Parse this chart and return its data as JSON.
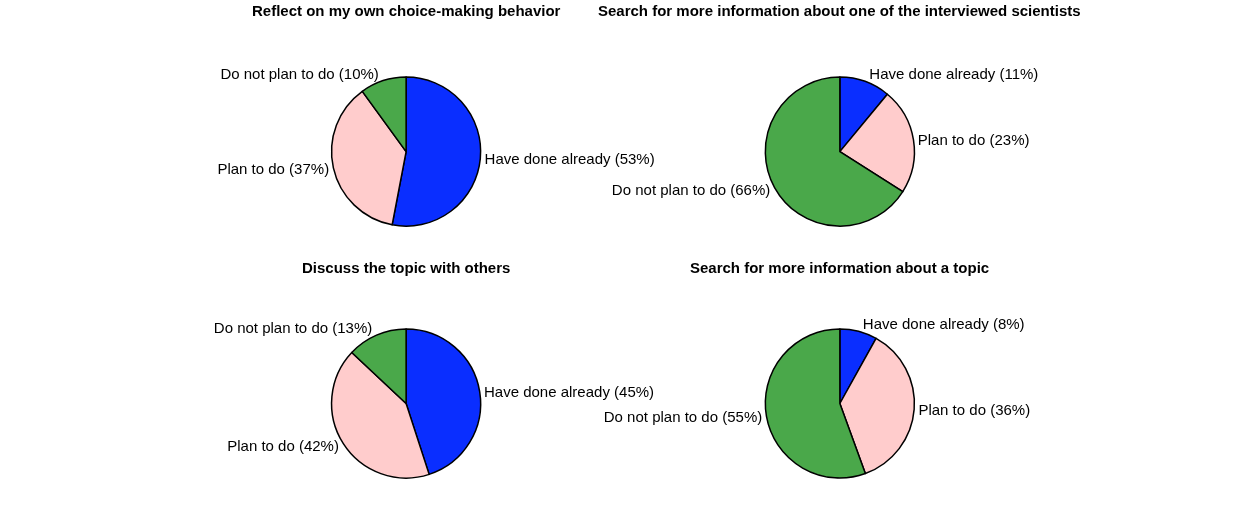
{
  "chart_data": [
    {
      "type": "pie",
      "title": "Reflect on my own choice-making behavior",
      "categories": [
        "Have done already (53%)",
        "Plan to do (37%)",
        "Do not plan to do (10%)"
      ],
      "values": [
        53,
        37,
        10
      ],
      "colors": [
        "#0a2eff",
        "#ffcccc",
        "#4aa84a"
      ],
      "legend": false
    },
    {
      "type": "pie",
      "title": "Search for more information about one of the interviewed scientists",
      "categories": [
        "Have done already (11%)",
        "Plan to do (23%)",
        "Do not plan to do (66%)"
      ],
      "values": [
        11,
        23,
        66
      ],
      "colors": [
        "#0a2eff",
        "#ffcccc",
        "#4aa84a"
      ],
      "legend": false
    },
    {
      "type": "pie",
      "title": "Discuss the topic with others",
      "categories": [
        "Have done already (45%)",
        "Plan to do (42%)",
        "Do not plan to do (13%)"
      ],
      "values": [
        45,
        42,
        13
      ],
      "colors": [
        "#0a2eff",
        "#ffcccc",
        "#4aa84a"
      ],
      "legend": false
    },
    {
      "type": "pie",
      "title": "Search for more information about a topic",
      "categories": [
        "Have done already (8%)",
        "Plan to do (36%)",
        "Do not plan to do (55%)"
      ],
      "values": [
        8,
        36,
        55
      ],
      "colors": [
        "#0a2eff",
        "#ffcccc",
        "#4aa84a"
      ],
      "legend": false
    }
  ]
}
